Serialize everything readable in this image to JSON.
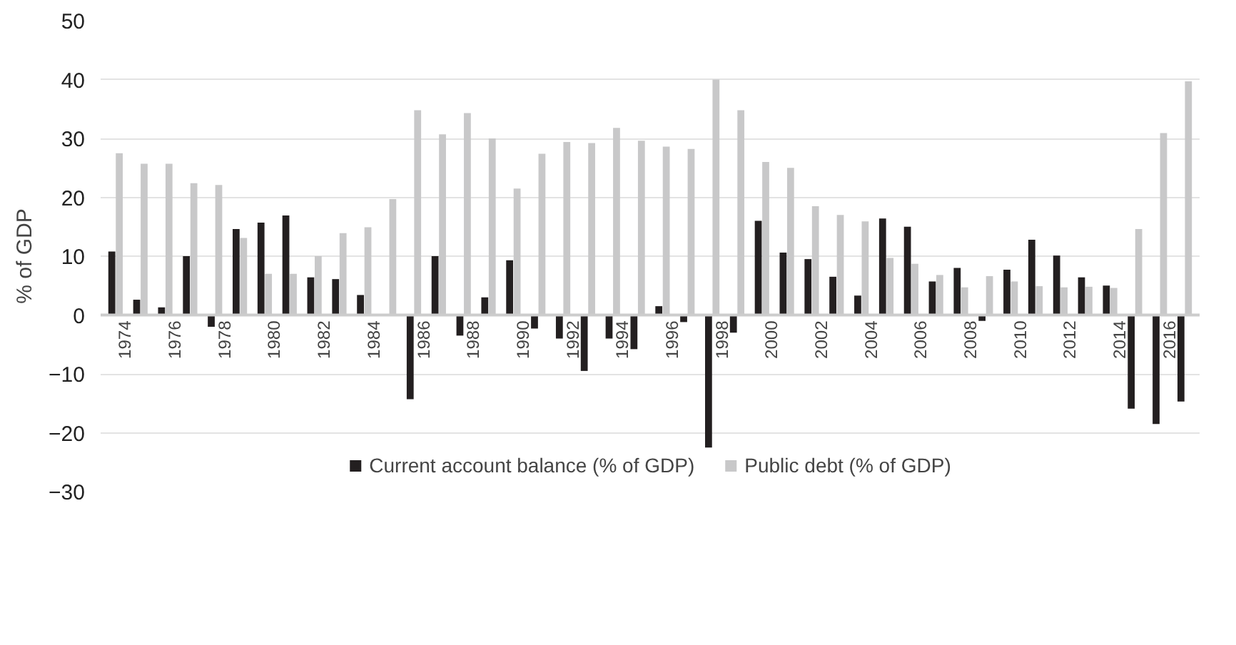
{
  "chart_data": {
    "type": "bar",
    "ylabel": "% of GDP",
    "categories": [
      "1974",
      null,
      "1976",
      null,
      "1978",
      null,
      "1980",
      null,
      "1982",
      null,
      "1984",
      null,
      "1986",
      null,
      "1988",
      null,
      "1990",
      null,
      "1992",
      null,
      "1994",
      null,
      "1996",
      null,
      "1998",
      null,
      "2000",
      null,
      "2002",
      null,
      "2004",
      null,
      "2006",
      null,
      "2008",
      null,
      "2010",
      null,
      "2012",
      null,
      "2014",
      null,
      "2016",
      null
    ],
    "series": [
      {
        "name": "Current account balance (% of GDP)",
        "color": "#231f20",
        "values": [
          10.8,
          2.6,
          1.3,
          10,
          -2,
          14.6,
          15.7,
          16.9,
          6.4,
          6.1,
          3.4,
          null,
          -14.3,
          10,
          -3.5,
          3,
          9.3,
          -2.3,
          -4,
          -9.5,
          -4,
          -5.8,
          1.5,
          -1.2,
          -22.5,
          -3,
          16,
          10.6,
          9.5,
          6.5,
          3.3,
          16.4,
          15,
          5.7,
          8,
          -1,
          7.7,
          12.8,
          10.1,
          6.4,
          5,
          -15.9,
          -18.5,
          -14.7
        ]
      },
      {
        "name": "Public debt (% of GDP)",
        "color": "#c8c8c9",
        "values": [
          27.5,
          25.7,
          25.7,
          22.4,
          22.1,
          13.1,
          7,
          7,
          10,
          13.9,
          14.9,
          19.7,
          34.8,
          30.7,
          34.3,
          30,
          21.5,
          27.4,
          29.4,
          29.2,
          31.8,
          29.6,
          28.6,
          28.2,
          40,
          34.8,
          26,
          25,
          18.5,
          17,
          15.9,
          9.7,
          8.7,
          6.8,
          4.7,
          6.6,
          5.7,
          4.9,
          4.7,
          4.8,
          4.6,
          14.6,
          30.9,
          39.7
        ]
      }
    ],
    "ylim": [
      -30,
      50
    ],
    "yticks": [
      -30,
      -20,
      -10,
      0,
      10,
      20,
      30,
      40,
      50
    ],
    "grid": "y",
    "legend": "bottom"
  }
}
